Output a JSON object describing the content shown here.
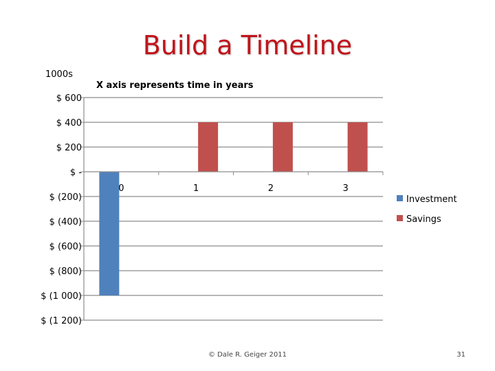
{
  "slide": {
    "title": "Build a Timeline",
    "footer": "© Dale R. Geiger 2011",
    "page_number": "31"
  },
  "chart_data": {
    "type": "bar",
    "units_label": "1000s",
    "annotation": "X axis represents time in years",
    "categories": [
      "0",
      "1",
      "2",
      "3"
    ],
    "series": [
      {
        "name": "Investment",
        "color": "#4f81bd",
        "values": [
          -1000,
          0,
          0,
          0
        ]
      },
      {
        "name": "Savings",
        "color": "#c0504d",
        "values": [
          0,
          400,
          400,
          400
        ]
      }
    ],
    "ylim": [
      -1200,
      600
    ],
    "yticks": [
      {
        "value": 600,
        "label": "$ 600"
      },
      {
        "value": 400,
        "label": "$ 400"
      },
      {
        "value": 200,
        "label": "$ 200"
      },
      {
        "value": 0,
        "label": "$ -"
      },
      {
        "value": -200,
        "label": "$ (200)"
      },
      {
        "value": -400,
        "label": "$ (400)"
      },
      {
        "value": -600,
        "label": "$ (600)"
      },
      {
        "value": -800,
        "label": "$ (800)"
      },
      {
        "value": -1000,
        "label": "$ (1 000)"
      },
      {
        "value": -1200,
        "label": "$ (1 200)"
      }
    ],
    "grid": true,
    "legend": "right"
  }
}
